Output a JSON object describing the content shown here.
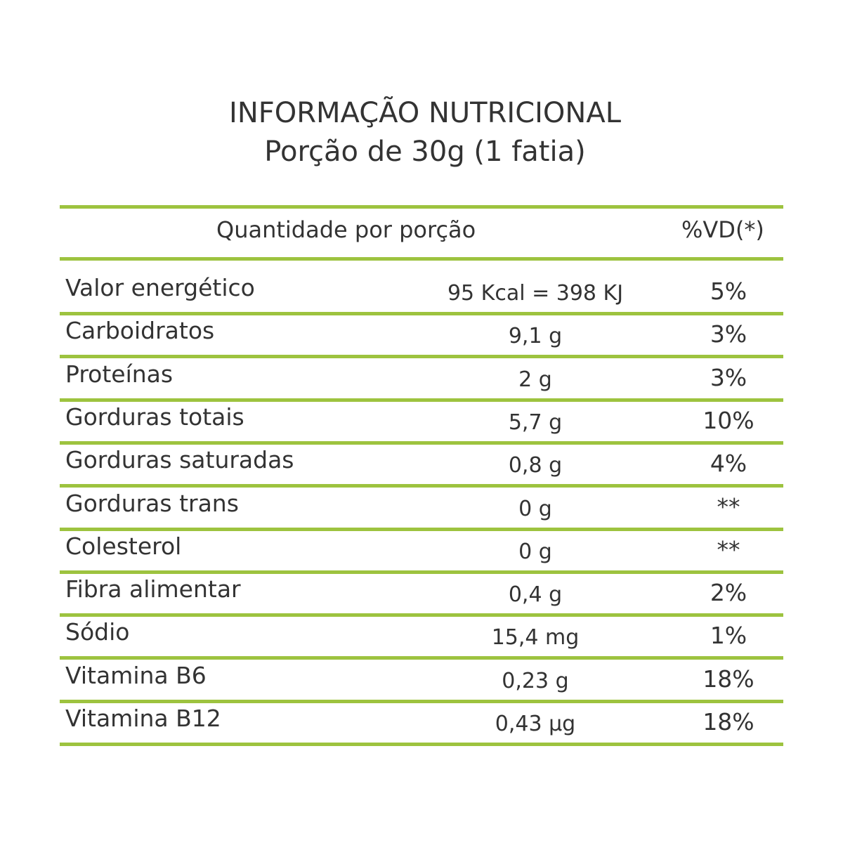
{
  "header": {
    "title": "INFORMAÇÃO NUTRICIONAL",
    "subtitle": "Porção de 30g (1 fatia)"
  },
  "table": {
    "columns": [
      "Quantidade por porção",
      "%VD(*)"
    ],
    "rows": [
      [
        "Valor energético",
        "95 Kcal = 398 KJ",
        "5%"
      ],
      [
        "Carboidratos",
        "9,1 g",
        "3%"
      ],
      [
        "Proteínas",
        "2 g",
        "3%"
      ],
      [
        "Gorduras totais",
        "5,7 g",
        "10%"
      ],
      [
        "Gorduras saturadas",
        "0,8 g",
        "4%"
      ],
      [
        "Gorduras trans",
        "0 g",
        "**"
      ],
      [
        "Colesterol",
        "0 g",
        "**"
      ],
      [
        "Fibra alimentar",
        "0,4 g",
        "2%"
      ],
      [
        "Sódio",
        "15,4 mg",
        "1%"
      ],
      [
        "Vitamina B6",
        "0,23 g",
        "18%"
      ],
      [
        "Vitamina B12",
        "0,43 µg",
        "18%"
      ]
    ]
  }
}
